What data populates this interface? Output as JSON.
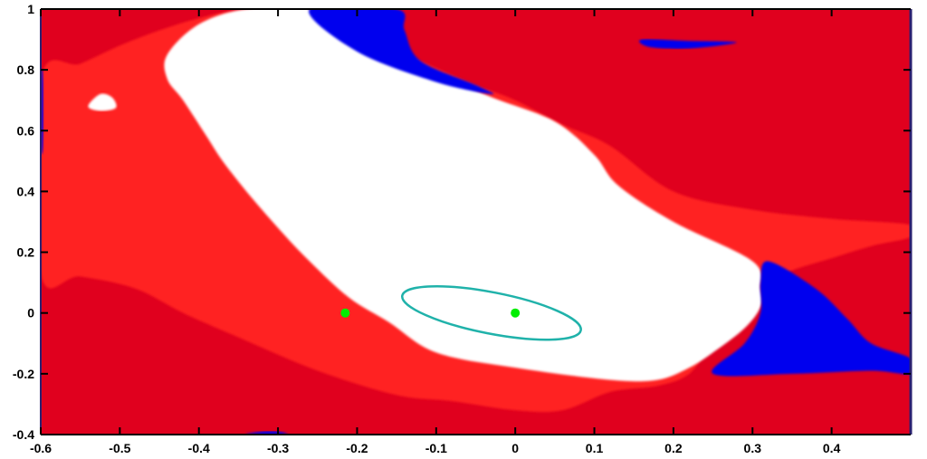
{
  "chart_data": {
    "type": "heatmap",
    "title": "",
    "xlabel": "",
    "ylabel": "",
    "xlim": [
      -0.6,
      0.5
    ],
    "ylim": [
      -0.4,
      1.0
    ],
    "x_ticks": [
      "-0.6",
      "-0.5",
      "-0.4",
      "-0.3",
      "-0.2",
      "-0.1",
      "0",
      "0.1",
      "0.2",
      "0.3",
      "0.4"
    ],
    "y_ticks": [
      "-0.4",
      "-0.2",
      "0",
      "0.2",
      "0.4",
      "0.6",
      "0.8",
      "1"
    ],
    "grid": false,
    "legend": "none",
    "colors": {
      "dark_red": "#e0001e",
      "bright_red": "#ff2020",
      "blue": "#0000ee",
      "white": "#ffffff",
      "ellipse": "#20b2aa",
      "point": "#00ee00",
      "frame_top": "#000000",
      "frame": "#2a2070"
    },
    "regions": [
      {
        "name": "bright-red-region",
        "color": "bright_red",
        "points": [
          [
            -0.6,
            0.77
          ],
          [
            -0.55,
            0.82
          ],
          [
            -0.5,
            0.88
          ],
          [
            -0.45,
            0.93
          ],
          [
            -0.4,
            0.97
          ],
          [
            -0.35,
            0.995
          ],
          [
            -0.25,
            1.0
          ],
          [
            -0.2,
            0.93
          ],
          [
            -0.12,
            0.83
          ],
          [
            -0.05,
            0.75
          ],
          [
            0.0,
            0.7
          ],
          [
            0.06,
            0.62
          ],
          [
            0.12,
            0.55
          ],
          [
            0.2,
            0.4
          ],
          [
            0.3,
            0.34
          ],
          [
            0.4,
            0.31
          ],
          [
            0.5,
            0.29
          ],
          [
            0.5,
            0.25
          ],
          [
            0.45,
            0.22
          ],
          [
            0.4,
            0.18
          ],
          [
            0.35,
            0.14
          ],
          [
            0.32,
            0.1
          ],
          [
            0.3,
            0.02
          ],
          [
            0.25,
            -0.1
          ],
          [
            0.22,
            -0.2
          ],
          [
            0.18,
            -0.24
          ],
          [
            0.12,
            -0.26
          ],
          [
            0.06,
            -0.32
          ],
          [
            0.0,
            -0.32
          ],
          [
            -0.08,
            -0.29
          ],
          [
            -0.15,
            -0.27
          ],
          [
            -0.25,
            -0.19
          ],
          [
            -0.35,
            -0.08
          ],
          [
            -0.42,
            0.0
          ],
          [
            -0.48,
            0.08
          ],
          [
            -0.55,
            0.12
          ],
          [
            -0.6,
            0.13
          ]
        ]
      },
      {
        "name": "white-region",
        "color": "white",
        "points": [
          [
            -0.44,
            0.85
          ],
          [
            -0.4,
            0.95
          ],
          [
            -0.34,
            1.0
          ],
          [
            -0.26,
            1.0
          ],
          [
            -0.21,
            0.9
          ],
          [
            -0.1,
            0.79
          ],
          [
            -0.03,
            0.71
          ],
          [
            0.05,
            0.63
          ],
          [
            0.1,
            0.52
          ],
          [
            0.13,
            0.42
          ],
          [
            0.2,
            0.3
          ],
          [
            0.3,
            0.17
          ],
          [
            0.31,
            0.08
          ],
          [
            0.31,
            0.02
          ],
          [
            0.29,
            -0.05
          ],
          [
            0.25,
            -0.13
          ],
          [
            0.22,
            -0.18
          ],
          [
            0.18,
            -0.22
          ],
          [
            0.12,
            -0.22
          ],
          [
            0.0,
            -0.18
          ],
          [
            -0.1,
            -0.13
          ],
          [
            -0.16,
            -0.03
          ],
          [
            -0.21,
            0.05
          ],
          [
            -0.26,
            0.17
          ],
          [
            -0.3,
            0.28
          ],
          [
            -0.34,
            0.4
          ],
          [
            -0.37,
            0.5
          ],
          [
            -0.39,
            0.58
          ],
          [
            -0.42,
            0.7
          ],
          [
            -0.44,
            0.77
          ]
        ]
      },
      {
        "name": "white-blob-small",
        "color": "white",
        "points": [
          [
            -0.54,
            0.68
          ],
          [
            -0.525,
            0.72
          ],
          [
            -0.51,
            0.71
          ],
          [
            -0.505,
            0.675
          ],
          [
            -0.525,
            0.665
          ]
        ]
      },
      {
        "name": "blue-region-top",
        "color": "blue",
        "points": [
          [
            -0.26,
            1.0
          ],
          [
            -0.15,
            1.0
          ],
          [
            -0.14,
            0.93
          ],
          [
            -0.12,
            0.83
          ],
          [
            -0.05,
            0.75
          ],
          [
            -0.03,
            0.72
          ],
          [
            -0.1,
            0.76
          ],
          [
            -0.2,
            0.86
          ]
        ]
      },
      {
        "name": "blue-region-top-right",
        "color": "blue",
        "points": [
          [
            0.16,
            0.9
          ],
          [
            0.22,
            0.895
          ],
          [
            0.28,
            0.89
          ],
          [
            0.22,
            0.87
          ],
          [
            0.17,
            0.875
          ]
        ]
      },
      {
        "name": "blue-region-right",
        "color": "blue",
        "points": [
          [
            0.32,
            0.17
          ],
          [
            0.38,
            0.08
          ],
          [
            0.42,
            -0.02
          ],
          [
            0.45,
            -0.1
          ],
          [
            0.5,
            -0.15
          ],
          [
            0.5,
            -0.2
          ],
          [
            0.45,
            -0.19
          ],
          [
            0.35,
            -0.2
          ],
          [
            0.25,
            -0.2
          ],
          [
            0.29,
            -0.1
          ],
          [
            0.31,
            0.0
          ],
          [
            0.31,
            0.1
          ]
        ]
      },
      {
        "name": "blue-region-bottom",
        "color": "blue",
        "points": [
          [
            -0.34,
            -0.4
          ],
          [
            -0.32,
            -0.39
          ],
          [
            -0.3,
            -0.39
          ],
          [
            -0.29,
            -0.4
          ]
        ]
      },
      {
        "name": "blue-region-left",
        "color": "blue",
        "points": [
          [
            -0.6,
            0.55
          ],
          [
            -0.597,
            0.55
          ],
          [
            -0.597,
            0.77
          ],
          [
            -0.6,
            0.78
          ]
        ]
      }
    ],
    "ellipse": {
      "cx": -0.03,
      "cy": 0.0,
      "rx": 0.115,
      "ry": 0.068,
      "angle_deg": -11
    },
    "points": [
      {
        "x": -0.215,
        "y": 0.0
      },
      {
        "x": 0.0,
        "y": 0.0
      }
    ]
  }
}
